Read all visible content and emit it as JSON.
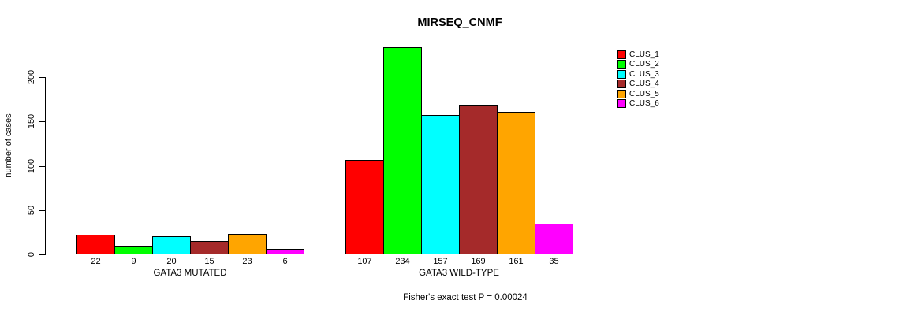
{
  "chart_data": {
    "type": "bar",
    "title": "MIRSEQ_CNMF",
    "ylabel": "number of cases",
    "xlabel": "",
    "footnote": "Fisher's exact test P = 0.00024",
    "yticks": [
      0,
      50,
      100,
      150,
      200
    ],
    "ylim": [
      0,
      234
    ],
    "grid": false,
    "legend_position": "top-right",
    "bar_border_color": "#000000",
    "axis_color": "#000000",
    "background_color": "#FFFFFF",
    "groups": [
      {
        "label": "GATA3 MUTATED",
        "values": [
          22,
          9,
          20,
          15,
          23,
          6
        ]
      },
      {
        "label": "GATA3 WILD-TYPE",
        "values": [
          107,
          234,
          157,
          169,
          161,
          35
        ]
      }
    ],
    "series": [
      {
        "name": "CLUS_1",
        "color": "#FF0000"
      },
      {
        "name": "CLUS_2",
        "color": "#00FF00"
      },
      {
        "name": "CLUS_3",
        "color": "#00FFFF"
      },
      {
        "name": "CLUS_4",
        "color": "#A52A2A"
      },
      {
        "name": "CLUS_5",
        "color": "#FFA500"
      },
      {
        "name": "CLUS_6",
        "color": "#FF00FF"
      }
    ]
  }
}
